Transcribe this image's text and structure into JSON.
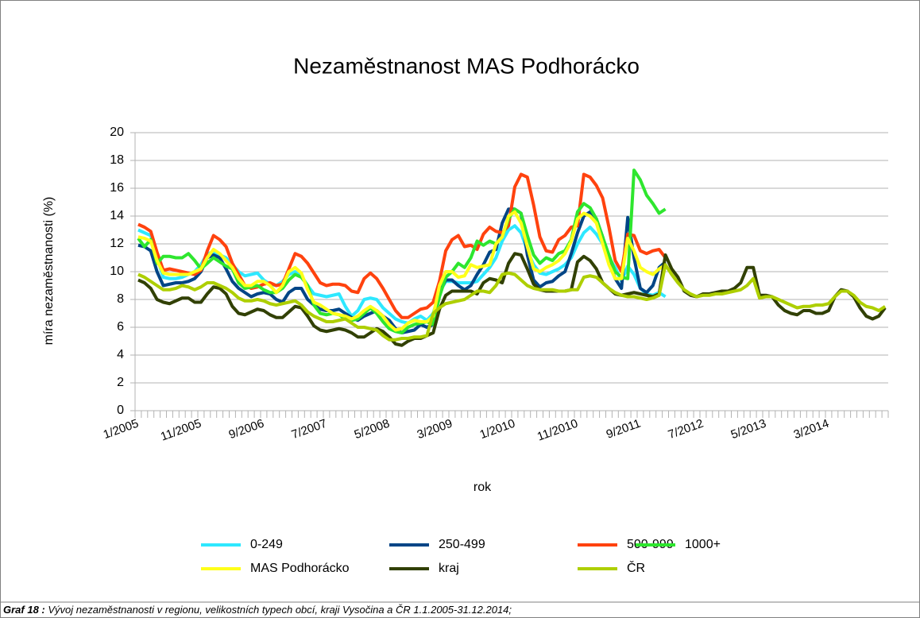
{
  "chart_data": {
    "type": "line",
    "title": "Nezaměstnanost MAS Podhorácko",
    "y_label": "míra nezaměstnanosti (%)",
    "x_label": "rok",
    "caption": {
      "label": "Graf 18 :",
      "text": "Vývoj nezaměstnanosti v regionu, velikostních typech obcí, kraji Vysočina a ČR 1.1.2005-31.12.2014;"
    },
    "ylim": [
      0,
      20
    ],
    "yticks": [
      0,
      2,
      4,
      6,
      8,
      10,
      12,
      14,
      16,
      18,
      20
    ],
    "grid": true,
    "legend": "bottom",
    "categories": [
      "1/2005",
      null,
      null,
      null,
      null,
      null,
      null,
      null,
      null,
      null,
      "11/2005",
      null,
      null,
      null,
      null,
      null,
      null,
      null,
      null,
      null,
      "9/2006",
      null,
      null,
      null,
      null,
      null,
      null,
      null,
      null,
      null,
      "7/2007",
      null,
      null,
      null,
      null,
      null,
      null,
      null,
      null,
      null,
      "5/2008",
      null,
      null,
      null,
      null,
      null,
      null,
      null,
      null,
      null,
      "3/2009",
      null,
      null,
      null,
      null,
      null,
      null,
      null,
      null,
      null,
      "1/2010",
      null,
      null,
      null,
      null,
      null,
      null,
      null,
      null,
      null,
      "11/2010",
      null,
      null,
      null,
      null,
      null,
      null,
      null,
      null,
      null,
      "9/2011",
      null,
      null,
      null,
      null,
      null,
      null,
      null,
      null,
      null,
      "7/2012",
      null,
      null,
      null,
      null,
      null,
      null,
      null,
      null,
      null,
      "5/2013",
      null,
      null,
      null,
      null,
      null,
      null,
      null,
      null,
      null,
      "3/2014",
      null,
      null,
      null,
      null,
      null,
      null,
      null,
      null,
      null
    ],
    "series": [
      {
        "name": "0-249",
        "color": "#2ee8ff",
        "values": [
          13.0,
          12.8,
          12.6,
          11.0,
          9.6,
          9.5,
          9.5,
          9.6,
          9.8,
          10.0,
          10.5,
          11.3,
          11.4,
          11.2,
          11.0,
          10.5,
          10.0,
          9.7,
          9.8,
          9.9,
          9.4,
          9.1,
          9.0,
          9.3,
          9.8,
          10.0,
          9.7,
          9.0,
          8.4,
          8.3,
          8.2,
          8.3,
          8.4,
          7.5,
          6.8,
          7.2,
          8.0,
          8.1,
          8.0,
          7.4,
          7.0,
          6.6,
          6.4,
          6.3,
          6.6,
          6.8,
          6.5,
          7.0,
          8.5,
          9.3,
          9.3,
          9.2,
          9.2,
          9.2,
          9.3,
          9.8,
          10.3,
          11.0,
          12.2,
          13.0,
          13.3,
          12.8,
          11.5,
          10.5,
          9.9,
          9.8,
          10.0,
          10.2,
          10.5,
          11.0,
          12.0,
          12.8,
          13.2,
          12.7,
          12.0,
          11.0,
          10.3,
          9.3,
          10.4,
          9.8,
          8.8,
          8.4,
          8.3,
          8.5,
          8.2,
          null,
          null,
          null,
          null,
          null,
          null,
          null,
          null,
          null,
          null,
          null,
          null,
          null,
          null,
          null,
          null,
          null,
          null,
          null,
          null,
          null,
          null,
          null,
          null,
          null,
          null,
          null,
          null,
          null,
          null,
          null,
          null,
          null,
          null,
          null
        ]
      },
      {
        "name": "250-499",
        "color": "#004586",
        "values": [
          11.9,
          11.8,
          11.5,
          10.0,
          9.0,
          9.1,
          9.2,
          9.2,
          9.3,
          9.5,
          10.0,
          11.0,
          11.2,
          11.0,
          10.2,
          9.3,
          8.8,
          8.5,
          8.2,
          8.4,
          8.5,
          8.4,
          8.0,
          7.8,
          8.5,
          8.8,
          8.8,
          8.0,
          7.6,
          7.3,
          7.2,
          7.2,
          7.3,
          7.0,
          6.7,
          6.5,
          6.8,
          7.0,
          7.2,
          6.8,
          6.5,
          5.9,
          5.6,
          5.7,
          5.8,
          6.2,
          6.0,
          6.2,
          8.5,
          9.4,
          9.4,
          9.0,
          8.7,
          9.0,
          9.8,
          10.5,
          11.4,
          11.6,
          13.5,
          14.5,
          14.5,
          14.2,
          11.2,
          9.4,
          8.9,
          9.2,
          9.3,
          9.7,
          10.0,
          11.3,
          12.8,
          14.0,
          14.3,
          13.8,
          12.5,
          10.7,
          9.5,
          8.8,
          13.9,
          11.0,
          8.8,
          8.5,
          9.0,
          10.3,
          10.7,
          null,
          null,
          null,
          null,
          null,
          null,
          null,
          null,
          null,
          null,
          null,
          null,
          null,
          null,
          null,
          null,
          null,
          null,
          null,
          null,
          null,
          null,
          null,
          null,
          null,
          null,
          null,
          null,
          null,
          null,
          null,
          null,
          null,
          null,
          null
        ]
      },
      {
        "name": "500-999",
        "color": "#ff420e",
        "values": [
          13.4,
          13.2,
          12.9,
          11.4,
          10.1,
          10.2,
          10.1,
          10.0,
          9.9,
          9.8,
          10.1,
          11.5,
          12.6,
          12.3,
          11.8,
          10.6,
          9.8,
          9.0,
          8.8,
          8.9,
          9.1,
          9.2,
          9.0,
          9.1,
          10.2,
          11.3,
          11.1,
          10.6,
          9.9,
          9.2,
          9.0,
          9.1,
          9.1,
          9.0,
          8.6,
          8.5,
          9.5,
          9.9,
          9.5,
          8.8,
          8.0,
          7.2,
          6.7,
          6.7,
          7.0,
          7.3,
          7.4,
          7.8,
          9.3,
          11.5,
          12.3,
          12.6,
          11.8,
          11.9,
          11.6,
          12.7,
          13.2,
          12.9,
          12.8,
          13.3,
          16.1,
          17.0,
          16.8,
          14.8,
          12.5,
          11.5,
          11.4,
          12.3,
          12.6,
          13.2,
          13.3,
          17.0,
          16.8,
          16.2,
          15.3,
          13.2,
          10.8,
          10.0,
          12.7,
          12.6,
          11.5,
          11.3,
          11.5,
          11.6,
          11.0,
          null,
          null,
          null,
          null,
          null,
          null,
          null,
          null,
          null,
          null,
          null,
          null,
          null,
          null,
          null,
          null,
          null,
          null,
          null,
          null,
          null,
          null,
          null,
          null,
          null,
          null,
          null,
          null,
          null,
          null,
          null,
          null,
          null,
          null,
          null
        ]
      },
      {
        "name": "1000+",
        "color": "#2ee62e",
        "values": [
          12.4,
          11.8,
          12.3,
          10.6,
          11.1,
          11.1,
          11.0,
          11.0,
          11.3,
          10.8,
          10.2,
          10.6,
          11.0,
          10.7,
          10.4,
          10.2,
          9.2,
          8.8,
          8.9,
          9.0,
          8.7,
          8.5,
          8.5,
          8.8,
          9.4,
          9.8,
          9.6,
          9.0,
          7.6,
          7.0,
          6.9,
          7.0,
          6.9,
          6.6,
          6.5,
          6.6,
          7.0,
          7.4,
          7.0,
          6.4,
          5.9,
          5.7,
          5.6,
          6.0,
          6.2,
          6.3,
          6.4,
          6.2,
          8.2,
          9.6,
          10.0,
          10.6,
          10.3,
          11.0,
          12.2,
          11.9,
          12.2,
          12.0,
          12.5,
          13.8,
          14.5,
          14.2,
          12.6,
          11.2,
          10.6,
          11.0,
          10.8,
          11.3,
          11.5,
          12.3,
          14.3,
          14.9,
          14.6,
          13.8,
          12.5,
          11.2,
          10.0,
          9.6,
          9.5,
          17.3,
          16.6,
          15.5,
          14.9,
          14.2,
          14.5,
          null,
          null,
          null,
          null,
          null,
          null,
          null,
          null,
          null,
          null,
          null,
          null,
          null,
          null,
          null,
          null,
          null,
          null,
          null,
          null,
          null,
          null,
          null,
          null,
          null,
          null,
          null,
          null,
          null,
          null,
          null,
          null,
          null,
          null,
          null
        ]
      },
      {
        "name": "MAS Podhorácko",
        "color": "#ffff1a",
        "values": [
          12.5,
          12.4,
          12.2,
          10.8,
          9.9,
          9.8,
          9.8,
          9.8,
          9.8,
          10.0,
          10.2,
          11.0,
          11.6,
          11.3,
          10.8,
          10.3,
          9.5,
          9.0,
          9.0,
          9.3,
          9.3,
          9.0,
          8.5,
          9.0,
          10.0,
          10.3,
          9.9,
          8.7,
          7.8,
          7.6,
          7.3,
          7.0,
          6.9,
          6.8,
          6.6,
          6.8,
          7.2,
          7.5,
          7.2,
          6.8,
          6.2,
          5.8,
          5.9,
          6.3,
          6.5,
          6.4,
          6.4,
          6.8,
          9.0,
          10.0,
          10.0,
          9.6,
          9.7,
          10.5,
          10.3,
          10.4,
          10.5,
          12.0,
          12.5,
          14.0,
          14.3,
          13.5,
          11.8,
          10.2,
          10.0,
          10.3,
          10.5,
          10.8,
          11.3,
          12.2,
          13.8,
          14.2,
          14.0,
          13.5,
          12.0,
          10.5,
          9.5,
          9.5,
          12.4,
          11.5,
          10.3,
          10.0,
          9.8,
          10.2,
          10.5,
          null,
          null,
          null,
          null,
          null,
          null,
          null,
          null,
          null,
          null,
          null,
          null,
          null,
          null,
          null,
          null,
          null,
          null,
          null,
          null,
          null,
          null,
          null,
          null,
          null,
          null,
          null,
          null,
          null,
          null,
          null,
          null,
          null,
          null,
          null
        ]
      },
      {
        "name": "kraj",
        "color": "#314004",
        "values": [
          9.4,
          9.2,
          8.8,
          8.0,
          7.8,
          7.7,
          7.9,
          8.1,
          8.1,
          7.8,
          7.8,
          8.4,
          8.9,
          8.8,
          8.4,
          7.5,
          7.0,
          6.9,
          7.1,
          7.3,
          7.2,
          6.9,
          6.7,
          6.7,
          7.1,
          7.5,
          7.4,
          6.8,
          6.1,
          5.8,
          5.7,
          5.8,
          5.9,
          5.8,
          5.6,
          5.3,
          5.3,
          5.6,
          5.9,
          5.7,
          5.3,
          4.8,
          4.7,
          5.0,
          5.2,
          5.2,
          5.4,
          5.6,
          7.3,
          8.3,
          8.6,
          8.6,
          8.6,
          8.6,
          8.4,
          9.2,
          9.5,
          9.4,
          9.2,
          10.6,
          11.3,
          11.2,
          10.2,
          9.1,
          8.7,
          8.6,
          8.6,
          8.6,
          8.6,
          8.7,
          10.7,
          11.1,
          10.8,
          10.2,
          9.2,
          8.8,
          8.4,
          8.3,
          8.4,
          8.5,
          8.4,
          8.3,
          8.2,
          8.4,
          11.2,
          10.2,
          9.6,
          8.6,
          8.3,
          8.2,
          8.4,
          8.4,
          8.5,
          8.6,
          8.6,
          8.8,
          9.2,
          10.3,
          10.3,
          8.3,
          8.3,
          8.2,
          7.6,
          7.2,
          7.0,
          6.9,
          7.2,
          7.2,
          7.0,
          7.0,
          7.2,
          8.2,
          8.7,
          8.6,
          8.2,
          7.4,
          6.8,
          6.6,
          6.8,
          7.4
        ]
      },
      {
        "name": "ČR",
        "color": "#aecf00",
        "values": [
          9.8,
          9.6,
          9.3,
          9.0,
          8.7,
          8.7,
          8.8,
          9.0,
          8.9,
          8.7,
          8.9,
          9.2,
          9.2,
          9.0,
          8.8,
          8.5,
          8.1,
          7.9,
          7.9,
          8.0,
          7.9,
          7.7,
          7.6,
          7.7,
          7.8,
          7.9,
          7.6,
          7.1,
          6.8,
          6.6,
          6.4,
          6.4,
          6.5,
          6.6,
          6.3,
          6.0,
          6.0,
          5.9,
          5.8,
          5.4,
          5.1,
          5.1,
          5.2,
          5.2,
          5.3,
          5.3,
          5.4,
          7.0,
          7.4,
          7.7,
          7.8,
          7.9,
          8.0,
          8.3,
          8.6,
          8.6,
          8.5,
          9.0,
          9.8,
          9.9,
          9.8,
          9.4,
          9.0,
          8.8,
          8.7,
          8.7,
          8.7,
          8.6,
          8.6,
          8.7,
          8.7,
          9.6,
          9.7,
          9.6,
          9.2,
          8.8,
          8.5,
          8.3,
          8.2,
          8.2,
          8.1,
          8.0,
          8.1,
          8.3,
          10.5,
          9.8,
          9.2,
          8.7,
          8.4,
          8.2,
          8.3,
          8.3,
          8.4,
          8.4,
          8.5,
          8.6,
          8.7,
          9.0,
          9.5,
          8.1,
          8.2,
          8.2,
          8.0,
          7.8,
          7.6,
          7.4,
          7.5,
          7.5,
          7.6,
          7.6,
          7.7,
          8.2,
          8.6,
          8.6,
          8.3,
          7.8,
          7.5,
          7.4,
          7.2,
          7.5
        ]
      }
    ]
  }
}
